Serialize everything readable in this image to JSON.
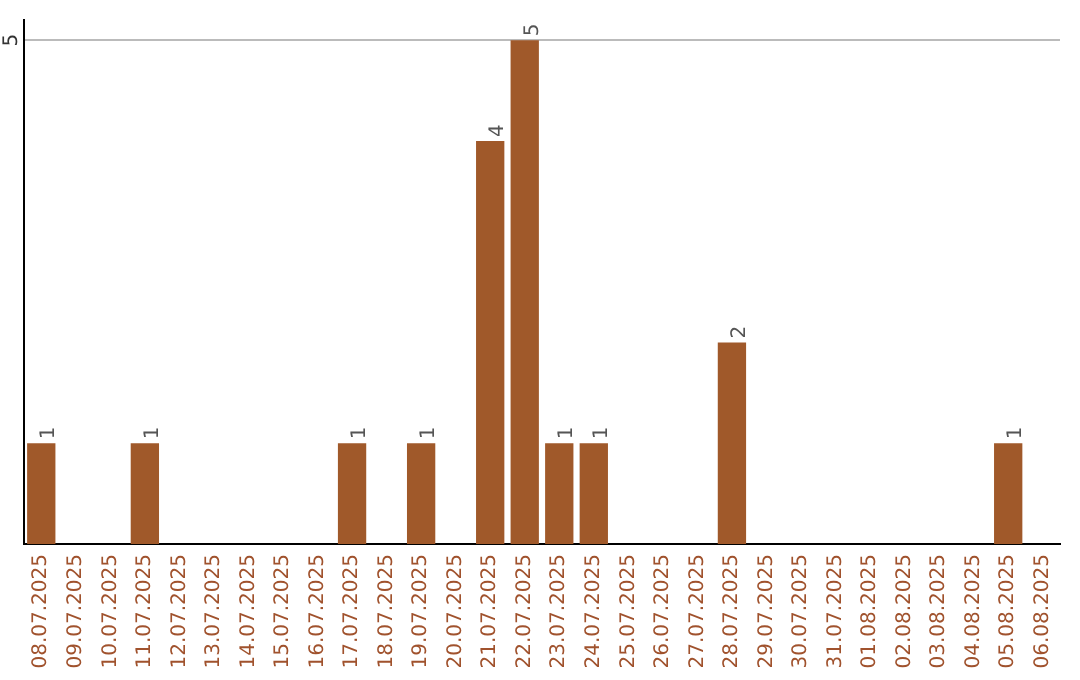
{
  "chart_data": {
    "type": "bar",
    "categories": [
      "08.07.2025",
      "09.07.2025",
      "10.07.2025",
      "11.07.2025",
      "12.07.2025",
      "13.07.2025",
      "14.07.2025",
      "15.07.2025",
      "16.07.2025",
      "17.07.2025",
      "18.07.2025",
      "19.07.2025",
      "20.07.2025",
      "21.07.2025",
      "22.07.2025",
      "23.07.2025",
      "24.07.2025",
      "25.07.2025",
      "26.07.2025",
      "27.07.2025",
      "28.07.2025",
      "29.07.2025",
      "30.07.2025",
      "31.07.2025",
      "01.08.2025",
      "02.08.2025",
      "03.08.2025",
      "04.08.2025",
      "05.08.2025",
      "06.08.2025"
    ],
    "values": [
      1,
      0,
      0,
      1,
      0,
      0,
      0,
      0,
      0,
      1,
      0,
      1,
      0,
      4,
      5,
      1,
      1,
      0,
      0,
      0,
      2,
      0,
      0,
      0,
      0,
      0,
      0,
      0,
      1,
      0
    ],
    "value_labels": [
      "1",
      null,
      null,
      "1",
      null,
      null,
      null,
      null,
      null,
      "1",
      null,
      "1",
      null,
      "4",
      "5",
      "1",
      "1",
      null,
      null,
      null,
      "2",
      null,
      null,
      null,
      null,
      null,
      null,
      null,
      "1",
      null
    ],
    "color": "#a0592a",
    "ylim": [
      0,
      5.2
    ],
    "yticks": [
      5
    ],
    "grid": "y",
    "legend": false
  }
}
